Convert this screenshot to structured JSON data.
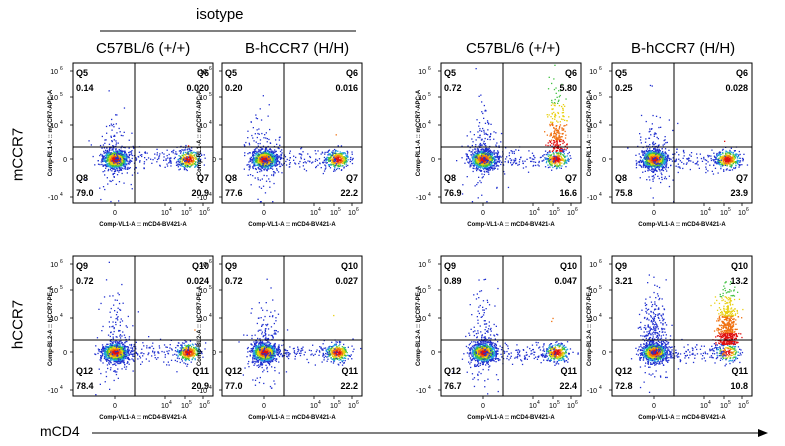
{
  "figure": {
    "group_label": "isotype",
    "column_headers": [
      "C57BL/6 (+/+)",
      "B-hCCR7 (H/H)",
      "C57BL/6 (+/+)",
      "B-hCCR7 (H/H)"
    ],
    "row_labels": [
      "mCCR7",
      "hCCR7"
    ],
    "bottom_label": "mCD4"
  },
  "chart_data": [
    {
      "type": "scatter",
      "row": 0,
      "col": 0,
      "ylabel": "Comp-RL1-A :: mCCR7-APC-A",
      "xlabel": "Comp-VL1-A :: mCD4-BV421-A",
      "quadrants": [
        {
          "name": "Q5",
          "value": "0.14"
        },
        {
          "name": "Q6",
          "value": "0.020"
        },
        {
          "name": "Q7",
          "value": "20.9"
        },
        {
          "name": "Q8",
          "value": "79.0"
        }
      ]
    },
    {
      "type": "scatter",
      "row": 0,
      "col": 1,
      "ylabel": "Comp-RL1-A :: mCCR7-APC-A",
      "xlabel": "Comp-VL1-A :: mCD4-BV421-A",
      "quadrants": [
        {
          "name": "Q5",
          "value": "0.20"
        },
        {
          "name": "Q6",
          "value": "0.016"
        },
        {
          "name": "Q7",
          "value": "22.2"
        },
        {
          "name": "Q8",
          "value": "77.6"
        }
      ]
    },
    {
      "type": "scatter",
      "row": 0,
      "col": 2,
      "ylabel": "Comp-RL1-A :: mCCR7-APC-A",
      "xlabel": "Comp-VL1-A :: mCD4-BV421-A",
      "quadrants": [
        {
          "name": "Q5",
          "value": "0.72"
        },
        {
          "name": "Q6",
          "value": "5.80"
        },
        {
          "name": "Q7",
          "value": "16.6"
        },
        {
          "name": "Q8",
          "value": "76.9"
        }
      ]
    },
    {
      "type": "scatter",
      "row": 0,
      "col": 3,
      "ylabel": "Comp-RL1-A :: mCCR7-APC-A",
      "xlabel": "Comp-VL1-A :: mCD4-BV421-A",
      "quadrants": [
        {
          "name": "Q5",
          "value": "0.25"
        },
        {
          "name": "Q6",
          "value": "0.028"
        },
        {
          "name": "Q7",
          "value": "23.9"
        },
        {
          "name": "Q8",
          "value": "75.8"
        }
      ]
    },
    {
      "type": "scatter",
      "row": 1,
      "col": 0,
      "ylabel": "Comp-BL2-A :: hCCR7-PE-A",
      "xlabel": "Comp-VL1-A :: mCD4-BV421-A",
      "quadrants": [
        {
          "name": "Q9",
          "value": "0.72"
        },
        {
          "name": "Q10",
          "value": "0.024"
        },
        {
          "name": "Q11",
          "value": "20.9"
        },
        {
          "name": "Q12",
          "value": "78.4"
        }
      ]
    },
    {
      "type": "scatter",
      "row": 1,
      "col": 1,
      "ylabel": "Comp-BL2-A :: hCCR7-PE-A",
      "xlabel": "Comp-VL1-A :: mCD4-BV421-A",
      "quadrants": [
        {
          "name": "Q9",
          "value": "0.72"
        },
        {
          "name": "Q10",
          "value": "0.027"
        },
        {
          "name": "Q11",
          "value": "22.2"
        },
        {
          "name": "Q12",
          "value": "77.0"
        }
      ]
    },
    {
      "type": "scatter",
      "row": 1,
      "col": 2,
      "ylabel": "Comp-BL2-A :: hCCR7-PE-A",
      "xlabel": "Comp-VL1-A :: mCD4-BV421-A",
      "quadrants": [
        {
          "name": "Q9",
          "value": "0.89"
        },
        {
          "name": "Q10",
          "value": "0.047"
        },
        {
          "name": "Q11",
          "value": "22.4"
        },
        {
          "name": "Q12",
          "value": "76.7"
        }
      ]
    },
    {
      "type": "scatter",
      "row": 1,
      "col": 3,
      "ylabel": "Comp-BL2-A :: hCCR7-PE-A",
      "xlabel": "Comp-VL1-A :: mCD4-BV421-A",
      "quadrants": [
        {
          "name": "Q9",
          "value": "3.21"
        },
        {
          "name": "Q10",
          "value": "13.2"
        },
        {
          "name": "Q11",
          "value": "10.8"
        },
        {
          "name": "Q12",
          "value": "72.8"
        }
      ]
    }
  ]
}
